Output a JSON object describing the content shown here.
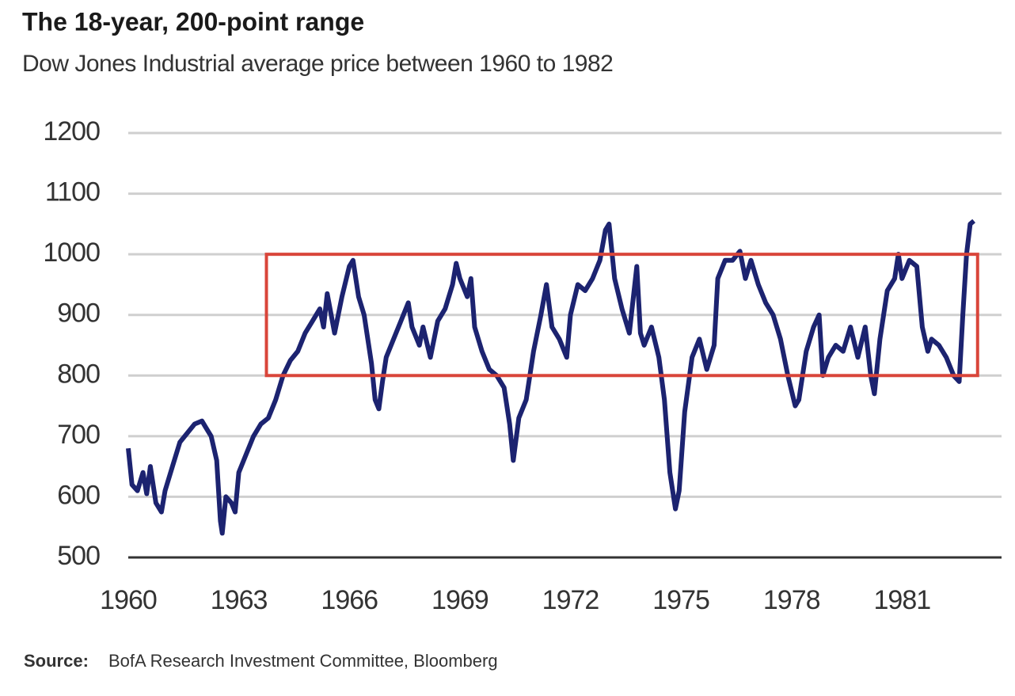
{
  "chart_data": {
    "type": "line",
    "title": "The 18-year, 200-point range",
    "subtitle": "Dow Jones Industrial average price between 1960 to 1982",
    "source_label": "Source:",
    "source": "BofA Research Investment Committee, Bloomberg",
    "color": "#1c2370",
    "x": [
      1960.0,
      1960.1,
      1960.25,
      1960.4,
      1960.5,
      1960.6,
      1960.75,
      1960.9,
      1961.0,
      1961.2,
      1961.4,
      1961.6,
      1961.8,
      1962.0,
      1962.1,
      1962.25,
      1962.4,
      1962.5,
      1962.55,
      1962.65,
      1962.8,
      1962.9,
      1963.0,
      1963.2,
      1963.4,
      1963.6,
      1963.8,
      1964.0,
      1964.2,
      1964.4,
      1964.6,
      1964.8,
      1965.0,
      1965.2,
      1965.3,
      1965.4,
      1965.6,
      1965.8,
      1966.0,
      1966.1,
      1966.25,
      1966.4,
      1966.6,
      1966.7,
      1966.8,
      1966.9,
      1967.0,
      1967.2,
      1967.4,
      1967.6,
      1967.7,
      1967.9,
      1968.0,
      1968.2,
      1968.4,
      1968.6,
      1968.8,
      1968.9,
      1969.0,
      1969.2,
      1969.3,
      1969.4,
      1969.6,
      1969.8,
      1970.0,
      1970.2,
      1970.35,
      1970.45,
      1970.6,
      1970.8,
      1971.0,
      1971.2,
      1971.35,
      1971.5,
      1971.7,
      1971.9,
      1972.0,
      1972.2,
      1972.4,
      1972.6,
      1972.8,
      1972.95,
      1973.05,
      1973.2,
      1973.4,
      1973.6,
      1973.8,
      1973.9,
      1974.0,
      1974.2,
      1974.4,
      1974.55,
      1974.7,
      1974.85,
      1974.95,
      1975.1,
      1975.3,
      1975.5,
      1975.7,
      1975.9,
      1976.0,
      1976.2,
      1976.4,
      1976.6,
      1976.75,
      1976.9,
      1977.1,
      1977.3,
      1977.5,
      1977.7,
      1977.9,
      1978.1,
      1978.2,
      1978.4,
      1978.6,
      1978.75,
      1978.85,
      1979.0,
      1979.2,
      1979.4,
      1979.6,
      1979.8,
      1980.0,
      1980.15,
      1980.25,
      1980.4,
      1980.6,
      1980.8,
      1980.9,
      1981.0,
      1981.2,
      1981.4,
      1981.55,
      1981.7,
      1981.8,
      1982.0,
      1982.2,
      1982.4,
      1982.55,
      1982.65,
      1982.75,
      1982.85,
      1982.95
    ],
    "values": [
      680,
      620,
      610,
      640,
      605,
      650,
      590,
      575,
      610,
      650,
      690,
      705,
      720,
      725,
      715,
      700,
      660,
      560,
      540,
      600,
      590,
      575,
      640,
      670,
      700,
      720,
      730,
      760,
      800,
      825,
      840,
      870,
      890,
      910,
      880,
      935,
      870,
      930,
      980,
      990,
      930,
      900,
      820,
      760,
      745,
      790,
      830,
      860,
      890,
      920,
      880,
      850,
      880,
      830,
      890,
      910,
      950,
      985,
      960,
      930,
      960,
      880,
      840,
      810,
      800,
      780,
      720,
      660,
      730,
      760,
      840,
      900,
      950,
      880,
      860,
      830,
      900,
      950,
      940,
      960,
      990,
      1040,
      1050,
      960,
      910,
      870,
      980,
      870,
      850,
      880,
      830,
      760,
      640,
      580,
      610,
      740,
      830,
      860,
      810,
      850,
      960,
      990,
      990,
      1005,
      960,
      990,
      950,
      920,
      900,
      860,
      800,
      750,
      760,
      840,
      880,
      900,
      800,
      830,
      850,
      840,
      880,
      830,
      880,
      800,
      770,
      860,
      940,
      960,
      1000,
      960,
      990,
      980,
      880,
      840,
      860,
      850,
      830,
      800,
      790,
      900,
      1000,
      1050,
      1055
    ],
    "xlim": [
      1960,
      1983.7
    ],
    "ylim": [
      500,
      1200
    ],
    "xticks": [
      1960,
      1963,
      1966,
      1969,
      1972,
      1975,
      1978,
      1981
    ],
    "yticks": [
      500,
      600,
      700,
      800,
      900,
      1000,
      1100,
      1200
    ],
    "grid": true,
    "highlight": {
      "xlim": [
        1963.75,
        1983.05
      ],
      "ylim": [
        800,
        1000
      ],
      "color": "#d9453a"
    }
  }
}
